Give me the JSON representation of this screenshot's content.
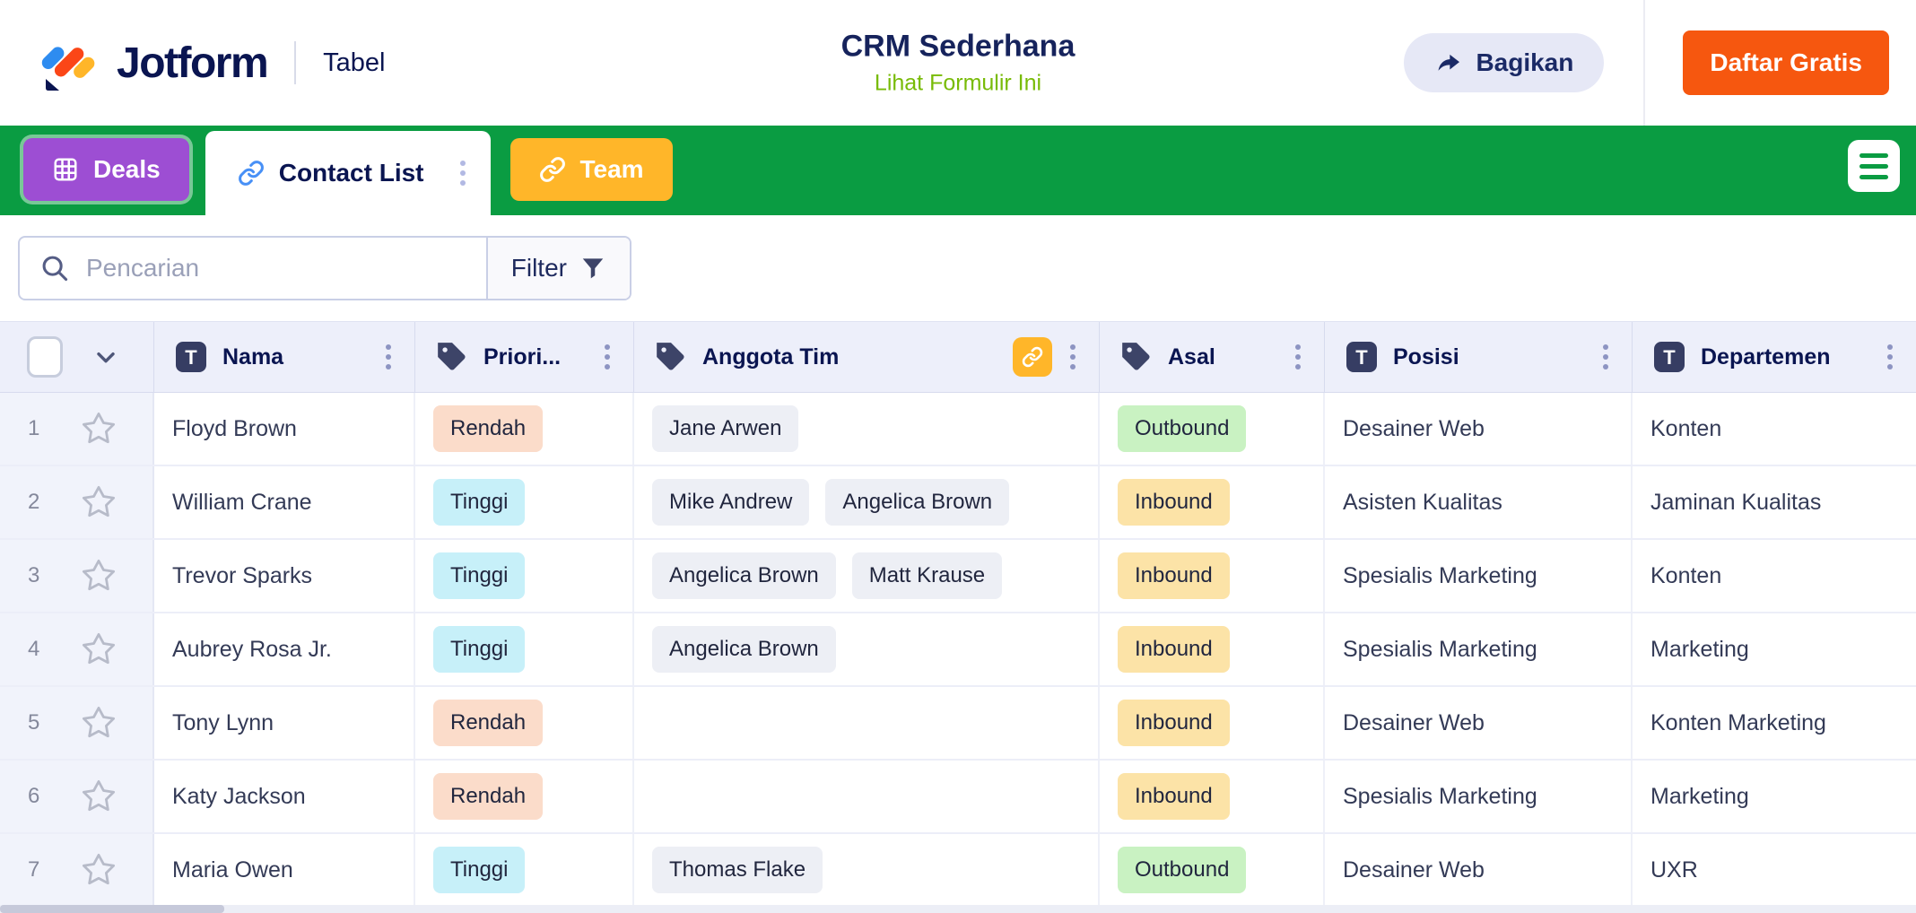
{
  "header": {
    "logo": "Jotform",
    "product": "Tabel",
    "title": "CRM Sederhana",
    "subtitle_link": "Lihat Formulir Ini",
    "share_label": "Bagikan",
    "signup_label": "Daftar Gratis"
  },
  "tabs": [
    {
      "label": "Deals",
      "icon": "grid-icon",
      "color": "#9d4ed3",
      "active": false
    },
    {
      "label": "Contact List",
      "icon": "link-icon",
      "color": "#ffffff",
      "active": true
    },
    {
      "label": "Team",
      "icon": "link-icon",
      "color": "#ffb629",
      "active": false
    }
  ],
  "toolbar": {
    "search_placeholder": "Pencarian",
    "filter_label": "Filter"
  },
  "table": {
    "columns": [
      {
        "label": "Nama",
        "icon": "text-field-icon"
      },
      {
        "label": "Priori...",
        "icon": "tag-icon"
      },
      {
        "label": "Anggota Tim",
        "icon": "tag-icon",
        "linked": true
      },
      {
        "label": "Asal",
        "icon": "tag-icon"
      },
      {
        "label": "Posisi",
        "icon": "text-field-icon"
      },
      {
        "label": "Departemen",
        "icon": "text-field-icon"
      }
    ],
    "rows": [
      {
        "num": "1",
        "nama": "Floyd Brown",
        "prioritas": "Rendah",
        "team": [
          "Jane Arwen"
        ],
        "asal": "Outbound",
        "posisi": "Desainer Web",
        "departemen": "Konten"
      },
      {
        "num": "2",
        "nama": "William Crane",
        "prioritas": "Tinggi",
        "team": [
          "Mike Andrew",
          "Angelica Brown"
        ],
        "asal": "Inbound",
        "posisi": "Asisten Kualitas",
        "departemen": "Jaminan Kualitas"
      },
      {
        "num": "3",
        "nama": "Trevor Sparks",
        "prioritas": "Tinggi",
        "team": [
          "Angelica Brown",
          "Matt Krause"
        ],
        "asal": "Inbound",
        "posisi": "Spesialis Marketing",
        "departemen": "Konten"
      },
      {
        "num": "4",
        "nama": "Aubrey Rosa Jr.",
        "prioritas": "Tinggi",
        "team": [
          "Angelica Brown"
        ],
        "asal": "Inbound",
        "posisi": "Spesialis Marketing",
        "departemen": "Marketing"
      },
      {
        "num": "5",
        "nama": "Tony Lynn",
        "prioritas": "Rendah",
        "team": [],
        "asal": "Inbound",
        "posisi": "Desainer Web",
        "departemen": "Konten Marketing"
      },
      {
        "num": "6",
        "nama": "Katy Jackson",
        "prioritas": "Rendah",
        "team": [],
        "asal": "Inbound",
        "posisi": "Spesialis Marketing",
        "departemen": "Marketing"
      },
      {
        "num": "7",
        "nama": "Maria Owen",
        "prioritas": "Tinggi",
        "team": [
          "Thomas Flake"
        ],
        "asal": "Outbound",
        "posisi": "Desainer Web",
        "departemen": "UXR"
      }
    ],
    "badge_colors": {
      "Rendah": "#fbdcca",
      "Tinggi": "#c7f0f9",
      "Outbound": "#c9f2c2",
      "Inbound": "#fce3a7",
      "team": "#edeff5"
    }
  },
  "colors": {
    "brand_navy": "#0a1551",
    "green_bar": "#0a9c42",
    "subtitle_green": "#78bb07",
    "cta_orange": "#f6570f",
    "tab_purple": "#9d4ed3",
    "tab_yellow": "#ffb629"
  }
}
